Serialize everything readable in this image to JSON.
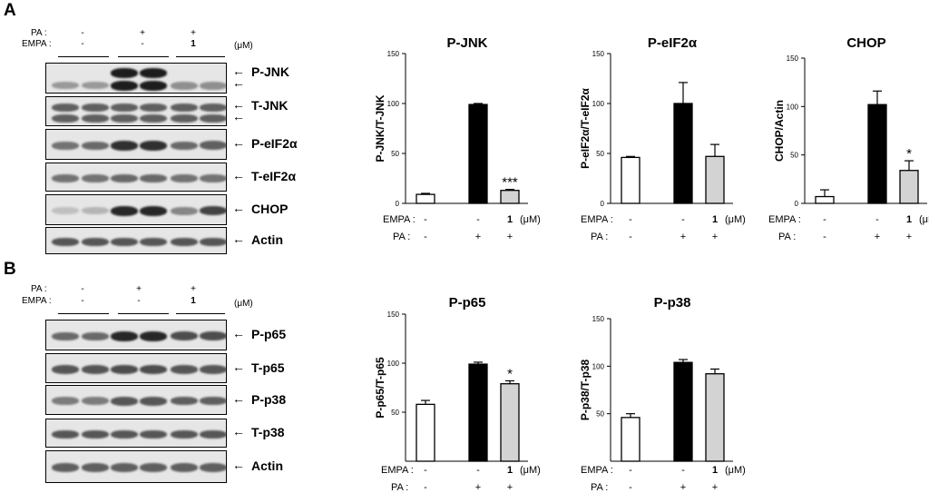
{
  "panels": {
    "a": {
      "letter": "A",
      "pa_label": "PA :",
      "empa_label": "EMPA :",
      "pa_values": [
        "-",
        "+",
        "+"
      ],
      "empa_values": [
        "-",
        "-",
        "1"
      ],
      "unit": "(μM)",
      "blots": [
        {
          "label": "P-JNK",
          "arrows": 2
        },
        {
          "label": "T-JNK",
          "arrows": 2
        },
        {
          "label": "P-eIF2α",
          "arrows": 1
        },
        {
          "label": "T-eIF2α",
          "arrows": 1
        },
        {
          "label": "CHOP",
          "arrows": 1
        },
        {
          "label": "Actin",
          "arrows": 1
        }
      ]
    },
    "b": {
      "letter": "B",
      "pa_label": "PA :",
      "empa_label": "EMPA :",
      "pa_values": [
        "-",
        "+",
        "+"
      ],
      "empa_values": [
        "-",
        "-",
        "1"
      ],
      "unit": "(μM)",
      "blots": [
        {
          "label": "P-p65",
          "arrows": 1
        },
        {
          "label": "T-p65",
          "arrows": 1
        },
        {
          "label": "P-p38",
          "arrows": 1
        },
        {
          "label": "T-p38",
          "arrows": 1
        },
        {
          "label": "Actin",
          "arrows": 1
        }
      ]
    }
  },
  "colors": {
    "control": "#ffffff",
    "pa": "#000000",
    "pa_empa": "#d3d3d3"
  },
  "chart_data": [
    {
      "type": "bar",
      "title": "P-JNK",
      "ylabel": "P-JNK/T-JNK",
      "categories": [
        "-/-",
        "+/-",
        "+/1"
      ],
      "values": [
        9,
        99,
        13
      ],
      "errors": [
        1,
        1,
        1
      ],
      "yticks": [
        "0",
        "50",
        "100",
        "150"
      ],
      "ylim": [
        0,
        150
      ],
      "significance": [
        "",
        "",
        "***"
      ],
      "empa_label": "EMPA :",
      "pa_label": "PA :",
      "empa_values": [
        "-",
        "-",
        "1"
      ],
      "pa_values": [
        "-",
        "+",
        "+"
      ],
      "unit": "(μM)"
    },
    {
      "type": "bar",
      "title": "P-eIF2α",
      "ylabel": "P-eIF2α/T-eIF2α",
      "categories": [
        "-/-",
        "+/-",
        "+/1"
      ],
      "values": [
        46,
        100,
        47
      ],
      "errors": [
        1,
        21,
        12
      ],
      "yticks": [
        "0",
        "50",
        "100",
        "150"
      ],
      "ylim": [
        0,
        150
      ],
      "significance": [
        "",
        "",
        ""
      ],
      "empa_label": "EMPA :",
      "pa_label": "PA :",
      "empa_values": [
        "-",
        "-",
        "1"
      ],
      "pa_values": [
        "-",
        "+",
        "+"
      ],
      "unit": "(μM)"
    },
    {
      "type": "bar",
      "title": "CHOP",
      "ylabel": "CHOP/Actin",
      "categories": [
        "-/-",
        "+/-",
        "+/1"
      ],
      "values": [
        7,
        102,
        34
      ],
      "errors": [
        7,
        14,
        10
      ],
      "yticks": [
        "0",
        "50",
        "100",
        "150"
      ],
      "ylim": [
        0,
        150
      ],
      "significance": [
        "",
        "",
        "*"
      ],
      "empa_label": "EMPA :",
      "pa_label": "PA :",
      "empa_values": [
        "-",
        "-",
        "1"
      ],
      "pa_values": [
        "-",
        "+",
        "+"
      ],
      "unit": "(μM)"
    },
    {
      "type": "bar",
      "title": "P-p65",
      "ylabel": "P-p65/T-p65",
      "categories": [
        "-/-",
        "+/-",
        "+/1"
      ],
      "values": [
        58,
        99,
        79
      ],
      "errors": [
        4,
        2,
        3
      ],
      "yticks": [
        "50",
        "100",
        "150"
      ],
      "ylim": [
        0,
        150
      ],
      "significance": [
        "",
        "",
        "*"
      ],
      "empa_label": "EMPA :",
      "pa_label": "PA :",
      "empa_values": [
        "-",
        "-",
        "1"
      ],
      "pa_values": [
        "-",
        "+",
        "+"
      ],
      "unit": "(μM)"
    },
    {
      "type": "bar",
      "title": "P-p38",
      "ylabel": "P-p38/T-p38",
      "categories": [
        "-/-",
        "+/-",
        "+/1"
      ],
      "values": [
        46,
        104,
        92
      ],
      "errors": [
        4,
        3,
        5
      ],
      "yticks": [
        "50",
        "100",
        "150"
      ],
      "ylim": [
        0,
        150
      ],
      "significance": [
        "",
        "",
        ""
      ],
      "empa_label": "EMPA :",
      "pa_label": "PA :",
      "empa_values": [
        "-",
        "-",
        "1"
      ],
      "pa_values": [
        "-",
        "+",
        "+"
      ],
      "unit": "(μM)"
    }
  ]
}
